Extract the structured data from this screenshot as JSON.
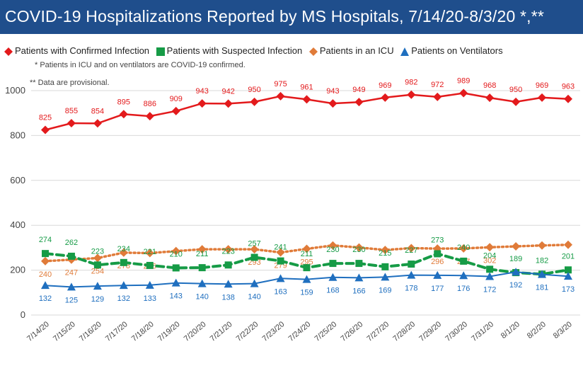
{
  "title": "COVID-19 Hospitalizations Reported by MS Hospitals, 7/14/20-8/3/20 *,**",
  "notes": [
    "* Patients in ICU and on ventilators are COVID-19 confirmed.",
    "** Data are provisional."
  ],
  "colors": {
    "header_bg": "#1f4e8c",
    "confirmed": "#e31a1c",
    "suspected": "#169b46",
    "icu": "#e07b39",
    "ventilators": "#1f6fbf"
  },
  "chart_data": {
    "type": "line",
    "x": [
      "7/14/20",
      "7/15/20",
      "7/16/20",
      "7/17/20",
      "7/18/20",
      "7/19/20",
      "7/20/20",
      "7/21/20",
      "7/22/20",
      "7/23/20",
      "7/24/20",
      "7/25/20",
      "7/26/20",
      "7/27/20",
      "7/28/20",
      "7/29/20",
      "7/30/20",
      "7/31/20",
      "8/1/20",
      "8/2/20",
      "8/3/20"
    ],
    "ylim": [
      0,
      1050
    ],
    "yticks": [
      0,
      200,
      400,
      600,
      800,
      1000
    ],
    "grid": true,
    "legend_position": "top",
    "series": [
      {
        "name": "Patients with Confirmed Infection",
        "marker": "diamond",
        "line": "solid",
        "color": "#e31a1c",
        "values": [
          825,
          855,
          854,
          895,
          886,
          909,
          943,
          942,
          950,
          975,
          961,
          943,
          949,
          969,
          982,
          972,
          989,
          968,
          950,
          969,
          963
        ]
      },
      {
        "name": "Patients with Suspected Infection",
        "marker": "square",
        "line": "dashed",
        "color": "#169b46",
        "values": [
          274,
          262,
          223,
          234,
          221,
          210,
          211,
          223,
          257,
          241,
          211,
          230,
          230,
          215,
          227,
          273,
          240,
          204,
          189,
          182,
          201
        ]
      },
      {
        "name": "Patients in an ICU",
        "marker": "diamond",
        "line": "dotted",
        "color": "#e07b39",
        "values": [
          240,
          247,
          254,
          278,
          276,
          285,
          293,
          293,
          293,
          279,
          295,
          310,
          301,
          290,
          298,
          296,
          297,
          302,
          306,
          310,
          313
        ]
      },
      {
        "name": "Patients on Ventilators",
        "marker": "triangle",
        "line": "solid",
        "color": "#1f6fbf",
        "values": [
          132,
          125,
          129,
          132,
          133,
          143,
          140,
          138,
          140,
          163,
          159,
          168,
          166,
          169,
          178,
          177,
          176,
          172,
          192,
          181,
          173
        ]
      }
    ],
    "data_labels": {
      "Patients with Confirmed Infection": [
        "825",
        "855",
        "854",
        "895",
        "886",
        "909",
        "943",
        "942",
        "950",
        "975",
        "961",
        "943",
        "949",
        "969",
        "982",
        "972",
        "989",
        "968",
        "950",
        "969",
        "963"
      ],
      "Patients with Suspected Infection": [
        "274",
        "262",
        "223",
        "234",
        "221",
        "210",
        "211",
        "223",
        "257",
        "241",
        "211",
        "230",
        "230",
        "215",
        "227",
        "273",
        "240",
        "204",
        "189",
        "182",
        "201"
      ],
      "Patients in an ICU": [
        "240",
        "247",
        "254",
        "278",
        "276",
        "",
        "",
        "",
        "293",
        "279",
        "295",
        "",
        "",
        "",
        "",
        "296",
        "297",
        "302",
        "",
        "",
        ""
      ],
      "Patients on Ventilators": [
        "132",
        "125",
        "129",
        "132",
        "133",
        "143",
        "140",
        "138",
        "140",
        "163",
        "159",
        "168",
        "166",
        "169",
        "178",
        "177",
        "176",
        "172",
        "192",
        "181",
        "173"
      ]
    }
  }
}
